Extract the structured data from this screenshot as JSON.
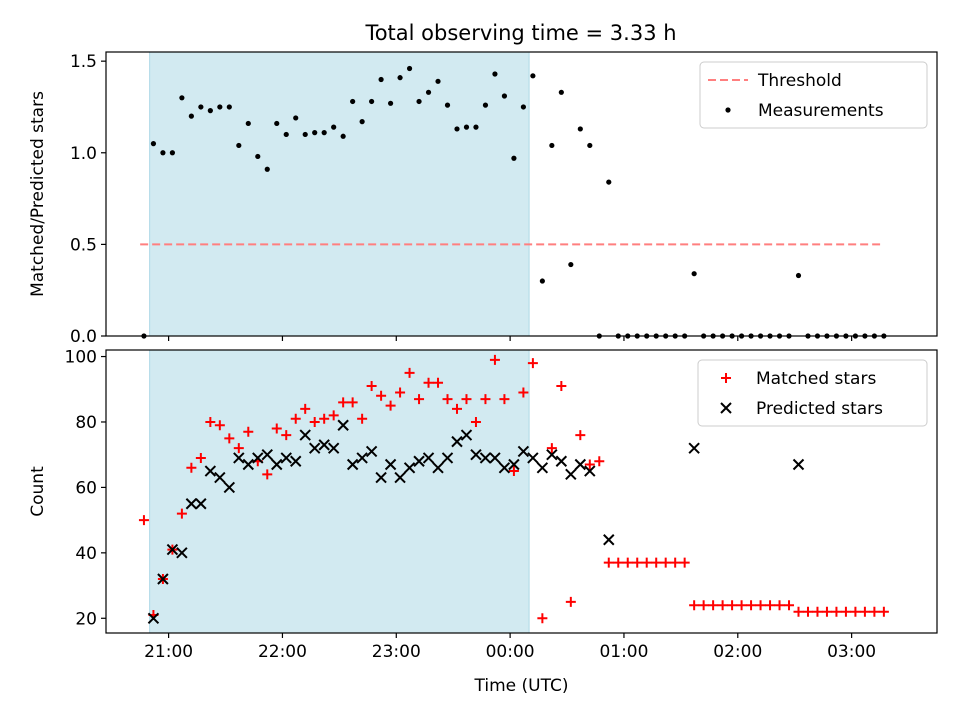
{
  "figure_title": "Total observing time = 3.33 h",
  "colors": {
    "shade": "#add8e6",
    "matched": "#ff0000",
    "predicted": "#000000",
    "threshold": "#ff7f7f",
    "measurement": "#000000"
  },
  "chart_data": [
    {
      "type": "scatter",
      "panel": "top",
      "title": "Total observing time = 3.33 h",
      "xlabel": "",
      "ylabel": "Matched/Predicted stars",
      "xlim": [
        "20:27",
        "03:45"
      ],
      "ylim": [
        0,
        1.55
      ],
      "yticks": [
        "0.0",
        "0.5",
        "1.0",
        "1.5"
      ],
      "ytick_values": [
        0,
        0.5,
        1.0,
        1.5
      ],
      "xticks": [
        "21:00",
        "22:00",
        "23:00",
        "00:00",
        "01:00",
        "02:00",
        "03:00"
      ],
      "show_xtick_labels": false,
      "shaded_span": [
        "20:50",
        "00:10"
      ],
      "legend_position": "upper right",
      "series": [
        {
          "name": "Threshold",
          "style": "dashed-line",
          "x": [
            "20:45",
            "03:15"
          ],
          "y": [
            0.5,
            0.5
          ]
        },
        {
          "name": "Measurements",
          "style": "dots",
          "x": [
            "20:47",
            "20:52",
            "20:57",
            "21:02",
            "21:07",
            "21:12",
            "21:17",
            "21:22",
            "21:27",
            "21:32",
            "21:37",
            "21:42",
            "21:47",
            "21:52",
            "21:57",
            "22:02",
            "22:07",
            "22:12",
            "22:17",
            "22:22",
            "22:27",
            "22:32",
            "22:37",
            "22:42",
            "22:47",
            "22:52",
            "22:57",
            "23:02",
            "23:07",
            "23:12",
            "23:17",
            "23:22",
            "23:27",
            "23:32",
            "23:37",
            "23:42",
            "23:47",
            "23:52",
            "23:57",
            "00:02",
            "00:07",
            "00:12",
            "00:17",
            "00:22",
            "00:27",
            "00:32",
            "00:37",
            "00:42",
            "00:47",
            "00:52",
            "00:57",
            "01:02",
            "01:07",
            "01:12",
            "01:17",
            "01:22",
            "01:27",
            "01:32",
            "01:37",
            "01:42",
            "01:47",
            "01:52",
            "01:57",
            "02:02",
            "02:07",
            "02:12",
            "02:17",
            "02:22",
            "02:27",
            "02:32",
            "02:37",
            "02:42",
            "02:47",
            "02:52",
            "02:57",
            "03:02",
            "03:07",
            "03:12",
            "03:17"
          ],
          "y": [
            0.0,
            1.05,
            1.0,
            1.0,
            1.3,
            1.2,
            1.25,
            1.23,
            1.25,
            1.25,
            1.04,
            1.16,
            0.98,
            0.91,
            1.16,
            1.1,
            1.19,
            1.1,
            1.11,
            1.11,
            1.14,
            1.09,
            1.28,
            1.17,
            1.28,
            1.4,
            1.27,
            1.41,
            1.46,
            1.28,
            1.33,
            1.39,
            1.26,
            1.13,
            1.14,
            1.14,
            1.26,
            1.43,
            1.31,
            0.97,
            1.25,
            1.42,
            0.3,
            1.04,
            1.33,
            0.39,
            1.13,
            1.04,
            0.0,
            0.84,
            0.0,
            0.0,
            0.0,
            0.0,
            0.0,
            0.0,
            0.0,
            0.0,
            0.34,
            0.0,
            0.0,
            0.0,
            0.0,
            0.0,
            0.0,
            0.0,
            0.0,
            0.0,
            0.0,
            0.33,
            0.0,
            0.0,
            0.0,
            0.0,
            0.0,
            0.0,
            0.0,
            0.0,
            0.0
          ]
        }
      ]
    },
    {
      "type": "scatter",
      "panel": "bottom",
      "title": "",
      "xlabel": "Time (UTC)",
      "ylabel": "Count",
      "xlim": [
        "20:27",
        "03:45"
      ],
      "ylim": [
        15.5,
        102
      ],
      "yticks": [
        "20",
        "40",
        "60",
        "80",
        "100"
      ],
      "ytick_values": [
        20,
        40,
        60,
        80,
        100
      ],
      "xticks": [
        "21:00",
        "22:00",
        "23:00",
        "00:00",
        "01:00",
        "02:00",
        "03:00"
      ],
      "shaded_span": [
        "20:50",
        "00:10"
      ],
      "legend_position": "upper right",
      "series": [
        {
          "name": "Matched stars",
          "style": "plus",
          "x": [
            "20:47",
            "20:52",
            "20:57",
            "21:02",
            "21:07",
            "21:12",
            "21:17",
            "21:22",
            "21:27",
            "21:32",
            "21:37",
            "21:42",
            "21:47",
            "21:52",
            "21:57",
            "22:02",
            "22:07",
            "22:12",
            "22:17",
            "22:22",
            "22:27",
            "22:32",
            "22:37",
            "22:42",
            "22:47",
            "22:52",
            "22:57",
            "23:02",
            "23:07",
            "23:12",
            "23:17",
            "23:22",
            "23:27",
            "23:32",
            "23:37",
            "23:42",
            "23:47",
            "23:52",
            "23:57",
            "00:02",
            "00:07",
            "00:12",
            "00:17",
            "00:22",
            "00:27",
            "00:32",
            "00:37",
            "00:42",
            "00:47",
            "00:52",
            "00:57",
            "01:02",
            "01:07",
            "01:12",
            "01:17",
            "01:22",
            "01:27",
            "01:32",
            "01:37",
            "01:42",
            "01:47",
            "01:52",
            "01:57",
            "02:02",
            "02:07",
            "02:12",
            "02:17",
            "02:22",
            "02:27",
            "02:32",
            "02:37",
            "02:42",
            "02:47",
            "02:52",
            "02:57",
            "03:02",
            "03:07",
            "03:12",
            "03:17"
          ],
          "y": [
            50,
            21,
            32,
            41,
            52,
            66,
            69,
            80,
            79,
            75,
            72,
            77,
            68,
            64,
            78,
            76,
            81,
            84,
            80,
            81,
            82,
            86,
            86,
            81,
            91,
            88,
            85,
            89,
            95,
            87,
            92,
            92,
            87,
            84,
            87,
            80,
            87,
            99,
            87,
            65,
            89,
            98,
            20,
            72,
            91,
            25,
            76,
            67,
            68,
            37,
            37,
            37,
            37,
            37,
            37,
            37,
            37,
            37,
            24,
            24,
            24,
            24,
            24,
            24,
            24,
            24,
            24,
            24,
            24,
            22,
            22,
            22,
            22,
            22,
            22,
            22,
            22,
            22,
            22
          ]
        },
        {
          "name": "Predicted stars",
          "style": "x",
          "x": [
            "20:52",
            "20:57",
            "21:02",
            "21:07",
            "21:12",
            "21:17",
            "21:22",
            "21:27",
            "21:32",
            "21:37",
            "21:42",
            "21:47",
            "21:52",
            "21:57",
            "22:02",
            "22:07",
            "22:12",
            "22:17",
            "22:22",
            "22:27",
            "22:32",
            "22:37",
            "22:42",
            "22:47",
            "22:52",
            "22:57",
            "23:02",
            "23:07",
            "23:12",
            "23:17",
            "23:22",
            "23:27",
            "23:32",
            "23:37",
            "23:42",
            "23:47",
            "23:52",
            "23:57",
            "00:02",
            "00:07",
            "00:12",
            "00:17",
            "00:22",
            "00:27",
            "00:32",
            "00:37",
            "00:42",
            "00:52",
            "01:37",
            "02:32"
          ],
          "y": [
            20,
            32,
            41,
            40,
            55,
            55,
            65,
            63,
            60,
            69,
            67,
            69,
            70,
            67,
            69,
            68,
            76,
            72,
            73,
            72,
            79,
            67,
            69,
            71,
            63,
            67,
            63,
            66,
            68,
            69,
            66,
            69,
            74,
            76,
            70,
            69,
            69,
            66,
            67,
            71,
            69,
            66,
            70,
            68,
            64,
            67,
            65,
            44,
            72,
            67
          ]
        }
      ]
    }
  ]
}
